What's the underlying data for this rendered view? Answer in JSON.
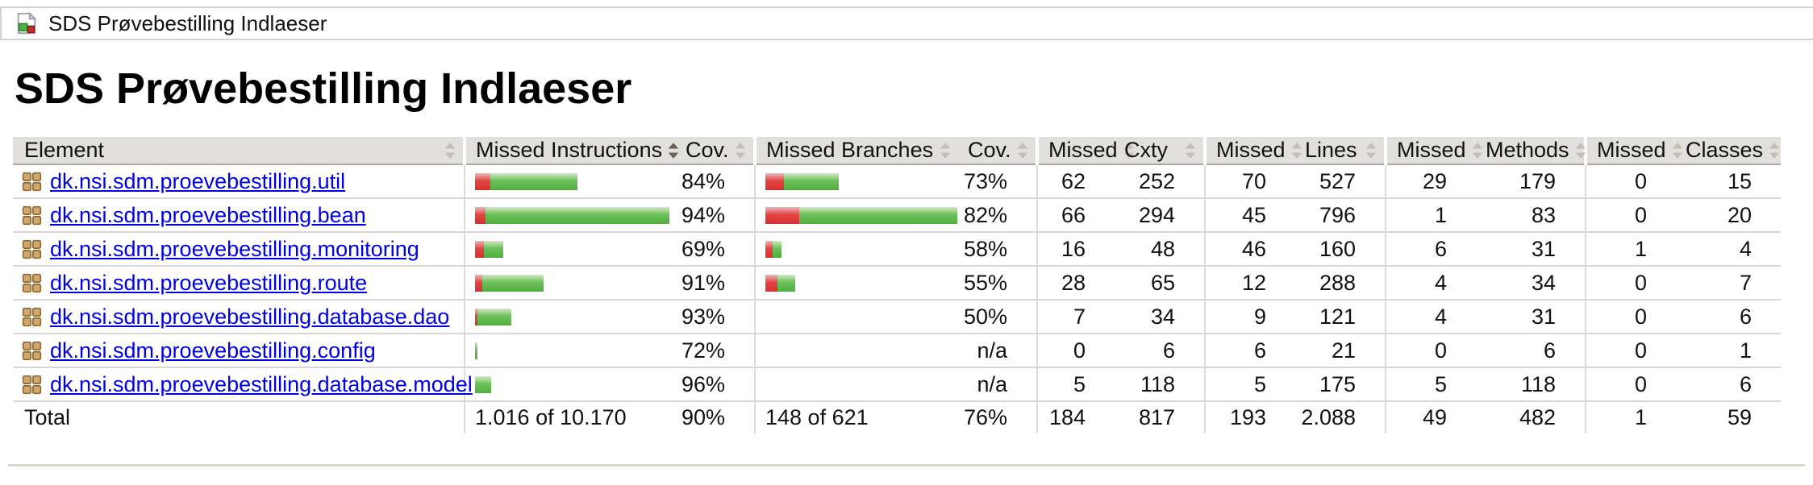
{
  "breadcrumb": {
    "session_label": "SDS Prøvebestilling Indlaeser"
  },
  "page": {
    "title": "SDS Prøvebestilling Indlaeser"
  },
  "table": {
    "columns": [
      {
        "label": "Element",
        "sorted": false
      },
      {
        "label": "Missed Instructions",
        "sorted": true
      },
      {
        "label": "Cov.",
        "sorted": false
      },
      {
        "label": "Missed Branches",
        "sorted": false
      },
      {
        "label": "Cov.",
        "sorted": false
      },
      {
        "label": "Missed",
        "sorted": false
      },
      {
        "label": "Cxty",
        "sorted": false
      },
      {
        "label": "Missed",
        "sorted": false
      },
      {
        "label": "Lines",
        "sorted": false
      },
      {
        "label": "Missed",
        "sorted": false
      },
      {
        "label": "Methods",
        "sorted": false
      },
      {
        "label": "Missed",
        "sorted": false
      },
      {
        "label": "Classes",
        "sorted": false
      }
    ],
    "rows": [
      {
        "name": "dk.nsi.sdm.proevebestilling.util",
        "instr_red": 19,
        "instr_green": 108,
        "instr_cov": "84%",
        "branch_red": 23,
        "branch_green": 68,
        "branch_cov": "73%",
        "missed_cxty": "62",
        "cxty": "252",
        "missed_lines": "70",
        "lines": "527",
        "missed_methods": "29",
        "methods": "179",
        "missed_classes": "0",
        "classes": "15"
      },
      {
        "name": "dk.nsi.sdm.proevebestilling.bean",
        "instr_red": 13,
        "instr_green": 228,
        "instr_cov": "94%",
        "branch_red": 42,
        "branch_green": 196,
        "branch_cov": "82%",
        "missed_cxty": "66",
        "cxty": "294",
        "missed_lines": "45",
        "lines": "796",
        "missed_methods": "1",
        "methods": "83",
        "missed_classes": "0",
        "classes": "20"
      },
      {
        "name": "dk.nsi.sdm.proevebestilling.monitoring",
        "instr_red": 11,
        "instr_green": 24,
        "instr_cov": "69%",
        "branch_red": 9,
        "branch_green": 11,
        "branch_cov": "58%",
        "missed_cxty": "16",
        "cxty": "48",
        "missed_lines": "46",
        "lines": "160",
        "missed_methods": "6",
        "methods": "31",
        "missed_classes": "1",
        "classes": "4"
      },
      {
        "name": "dk.nsi.sdm.proevebestilling.route",
        "instr_red": 9,
        "instr_green": 76,
        "instr_cov": "91%",
        "branch_red": 15,
        "branch_green": 22,
        "branch_cov": "55%",
        "missed_cxty": "28",
        "cxty": "65",
        "missed_lines": "12",
        "lines": "288",
        "missed_methods": "4",
        "methods": "34",
        "missed_classes": "0",
        "classes": "7"
      },
      {
        "name": "dk.nsi.sdm.proevebestilling.database.dao",
        "instr_red": 3,
        "instr_green": 42,
        "instr_cov": "93%",
        "branch_red": 0,
        "branch_green": 0,
        "branch_cov": "50%",
        "missed_cxty": "7",
        "cxty": "34",
        "missed_lines": "9",
        "lines": "121",
        "missed_methods": "4",
        "methods": "31",
        "missed_classes": "0",
        "classes": "6"
      },
      {
        "name": "dk.nsi.sdm.proevebestilling.config",
        "instr_red": 0,
        "instr_green": 3,
        "instr_cov": "72%",
        "branch_red": 0,
        "branch_green": 0,
        "branch_cov": "n/a",
        "missed_cxty": "0",
        "cxty": "6",
        "missed_lines": "6",
        "lines": "21",
        "missed_methods": "0",
        "methods": "6",
        "missed_classes": "0",
        "classes": "1"
      },
      {
        "name": "dk.nsi.sdm.proevebestilling.database.model",
        "instr_red": 0,
        "instr_green": 20,
        "instr_cov": "96%",
        "branch_red": 0,
        "branch_green": 0,
        "branch_cov": "n/a",
        "missed_cxty": "5",
        "cxty": "118",
        "missed_lines": "5",
        "lines": "175",
        "missed_methods": "5",
        "methods": "118",
        "missed_classes": "0",
        "classes": "6"
      }
    ],
    "total": {
      "label": "Total",
      "instructions": "1.016 of 10.170",
      "instr_cov": "90%",
      "branches": "148 of 621",
      "branch_cov": "76%",
      "missed_cxty": "184",
      "cxty": "817",
      "missed_lines": "193",
      "lines": "2.088",
      "missed_methods": "49",
      "methods": "482",
      "missed_classes": "1",
      "classes": "59"
    }
  },
  "icons": {
    "breadcrumb": "report-icon",
    "package_row": "package-icon",
    "sort": "sort-caret-icon"
  },
  "colors": {
    "bar_red": "#e34545",
    "bar_green": "#6cc159",
    "link_blue": "#0000e6",
    "header_bg": "#e1e0dd",
    "caret_gray": "#c3bfb5",
    "caret_sorted": "#6b5e52",
    "border_gray": "#d9d8d4"
  }
}
